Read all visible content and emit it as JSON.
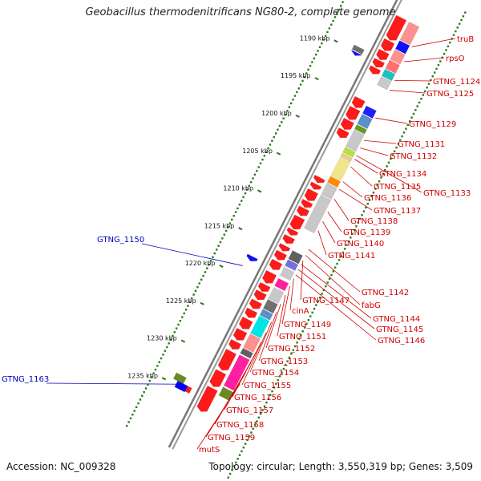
{
  "title": "Geobacillus thermodenitrificans NG80-2, complete genome",
  "footer": {
    "accession": "Accession: NC_009328",
    "summary": "Topology: circular; Length: 3,550,319 bp; Genes: 3,509"
  },
  "colors": {
    "red_label": "#d00000",
    "blue_label": "#0000c0",
    "ticks": "#2a7a1a",
    "backbone": "#666666"
  },
  "ruler": [
    {
      "kbp": 1190,
      "label": "1190 kbp"
    },
    {
      "kbp": 1195,
      "label": "1195 kbp"
    },
    {
      "kbp": 1200,
      "label": "1200 kbp"
    },
    {
      "kbp": 1205,
      "label": "1205 kbp"
    },
    {
      "kbp": 1210,
      "label": "1210 kbp"
    },
    {
      "kbp": 1215,
      "label": "1215 kbp"
    },
    {
      "kbp": 1220,
      "label": "1220 kbp"
    },
    {
      "kbp": 1225,
      "label": "1225 kbp"
    },
    {
      "kbp": 1230,
      "label": "1230 kbp"
    },
    {
      "kbp": 1235,
      "label": "1235 kbp"
    }
  ],
  "right_labels": [
    {
      "text": "truB",
      "anchor_kbp": 1186.5
    },
    {
      "text": "rpsO",
      "anchor_kbp": 1188.5
    },
    {
      "text": "GTNG_1124",
      "anchor_kbp": 1191.0
    },
    {
      "text": "GTNG_1125",
      "anchor_kbp": 1192.3
    },
    {
      "text": "GTNG_1129",
      "anchor_kbp": 1196.0
    },
    {
      "text": "GTNG_1131",
      "anchor_kbp": 1199.0
    },
    {
      "text": "GTNG_1132",
      "anchor_kbp": 1200.0
    },
    {
      "text": "GTNG_1134",
      "anchor_kbp": 1201.5
    },
    {
      "text": "GTNG_1135",
      "anchor_kbp": 1202.5
    },
    {
      "text": "GTNG_1133",
      "anchor_kbp": 1201.0
    },
    {
      "text": "GTNG_1136",
      "anchor_kbp": 1204.5
    },
    {
      "text": "GTNG_1137",
      "anchor_kbp": 1205.5
    },
    {
      "text": "GTNG_1138",
      "anchor_kbp": 1206.8
    },
    {
      "text": "GTNG_1139",
      "anchor_kbp": 1208.5
    },
    {
      "text": "GTNG_1140",
      "anchor_kbp": 1209.8
    },
    {
      "text": "GTNG_1141",
      "anchor_kbp": 1211.0
    },
    {
      "text": "GTNG_1142",
      "anchor_kbp": 1213.5
    },
    {
      "text": "fabG",
      "anchor_kbp": 1214.3
    },
    {
      "text": "GTNG_1147",
      "anchor_kbp": 1215.0
    },
    {
      "text": "GTNG_1144",
      "anchor_kbp": 1215.5
    },
    {
      "text": "GTNG_1145",
      "anchor_kbp": 1216.2
    },
    {
      "text": "GTNG_1146",
      "anchor_kbp": 1216.9
    },
    {
      "text": "cinA",
      "anchor_kbp": 1217.4
    },
    {
      "text": "GTNG_1149",
      "anchor_kbp": 1218.4
    },
    {
      "text": "GTNG_1151",
      "anchor_kbp": 1219.6
    },
    {
      "text": "GTNG_1152",
      "anchor_kbp": 1220.8
    },
    {
      "text": "GTNG_1153",
      "anchor_kbp": 1221.9
    },
    {
      "text": "GTNG_1154",
      "anchor_kbp": 1223.2
    },
    {
      "text": "GTNG_1155",
      "anchor_kbp": 1224.6
    },
    {
      "text": "GTNG_1156",
      "anchor_kbp": 1225.9
    },
    {
      "text": "GTNG_1157",
      "anchor_kbp": 1227.2
    },
    {
      "text": "GTNG_1158",
      "anchor_kbp": 1228.6
    },
    {
      "text": "GTNG_1159",
      "anchor_kbp": 1230.0
    },
    {
      "text": "mutS",
      "anchor_kbp": 1231.5
    }
  ],
  "left_labels": [
    {
      "text": "GTNG_1150",
      "anchor_kbp": 1218.8
    },
    {
      "text": "GTNG_1163",
      "anchor_kbp": 1234.6
    }
  ],
  "features": [
    {
      "name": "forward-gene",
      "start": 1184.0,
      "end": 1187.0,
      "lane": 1,
      "color": "#ff1a1a",
      "arrow": true
    },
    {
      "name": "forward-gene",
      "start": 1187.1,
      "end": 1188.4,
      "lane": 1,
      "color": "#ff1a1a",
      "arrow": true
    },
    {
      "name": "forward-gene",
      "start": 1188.5,
      "end": 1189.6,
      "lane": 1,
      "color": "#ff1a1a",
      "arrow": true
    },
    {
      "name": "forward-gene",
      "start": 1189.7,
      "end": 1190.6,
      "lane": 1,
      "color": "#ff1a1a",
      "arrow": true
    },
    {
      "name": "forward-gene",
      "start": 1190.7,
      "end": 1191.5,
      "lane": 1,
      "color": "#ff1a1a",
      "arrow": true
    },
    {
      "name": "forward-gene",
      "start": 1194.8,
      "end": 1196.0,
      "lane": 1,
      "color": "#ff1a1a",
      "arrow": true
    },
    {
      "name": "forward-gene",
      "start": 1196.1,
      "end": 1197.6,
      "lane": 1,
      "color": "#ff1a1a",
      "arrow": true
    },
    {
      "name": "forward-gene",
      "start": 1197.7,
      "end": 1198.9,
      "lane": 1,
      "color": "#ff1a1a",
      "arrow": true
    },
    {
      "name": "forward-gene",
      "start": 1199.0,
      "end": 1200.0,
      "lane": 1,
      "color": "#ff1a1a",
      "arrow": true
    },
    {
      "name": "forward-gene",
      "start": 1205.3,
      "end": 1206.0,
      "lane": 1,
      "color": "#ff1a1a",
      "arrow": true
    },
    {
      "name": "forward-gene",
      "start": 1206.2,
      "end": 1206.9,
      "lane": 1,
      "color": "#ff1a1a",
      "arrow": true
    },
    {
      "name": "forward-gene",
      "start": 1207.1,
      "end": 1208.4,
      "lane": 1,
      "color": "#ff1a1a",
      "arrow": true
    },
    {
      "name": "forward-gene",
      "start": 1208.5,
      "end": 1209.3,
      "lane": 1,
      "color": "#ff1a1a",
      "arrow": true
    },
    {
      "name": "forward-gene",
      "start": 1209.4,
      "end": 1210.4,
      "lane": 1,
      "color": "#ff1a1a",
      "arrow": true
    },
    {
      "name": "forward-gene",
      "start": 1210.6,
      "end": 1212.2,
      "lane": 1,
      "color": "#ff1a1a",
      "arrow": true
    },
    {
      "name": "forward-gene",
      "start": 1212.3,
      "end": 1213.0,
      "lane": 1,
      "color": "#ff1a1a",
      "arrow": true
    },
    {
      "name": "forward-gene",
      "start": 1213.2,
      "end": 1214.1,
      "lane": 1,
      "color": "#ff1a1a",
      "arrow": true
    },
    {
      "name": "forward-gene",
      "start": 1214.4,
      "end": 1215.1,
      "lane": 1,
      "color": "#ff1a1a",
      "arrow": true
    },
    {
      "name": "forward-gene",
      "start": 1215.3,
      "end": 1216.3,
      "lane": 1,
      "color": "#ff1a1a",
      "arrow": true
    },
    {
      "name": "forward-gene",
      "start": 1216.5,
      "end": 1217.6,
      "lane": 1,
      "color": "#ff1a1a",
      "arrow": true
    },
    {
      "name": "forward-gene",
      "start": 1218.0,
      "end": 1219.4,
      "lane": 1,
      "color": "#ff1a1a",
      "arrow": true
    },
    {
      "name": "forward-gene",
      "start": 1219.6,
      "end": 1220.5,
      "lane": 1,
      "color": "#ff1a1a",
      "arrow": true
    },
    {
      "name": "forward-gene",
      "start": 1220.6,
      "end": 1221.6,
      "lane": 1,
      "color": "#ff1a1a",
      "arrow": true
    },
    {
      "name": "forward-gene",
      "start": 1221.8,
      "end": 1222.8,
      "lane": 1,
      "color": "#ff1a1a",
      "arrow": true
    },
    {
      "name": "forward-gene",
      "start": 1223.0,
      "end": 1224.0,
      "lane": 1,
      "color": "#ff1a1a",
      "arrow": true
    },
    {
      "name": "forward-gene",
      "start": 1224.2,
      "end": 1225.5,
      "lane": 1,
      "color": "#ff1a1a",
      "arrow": true
    },
    {
      "name": "forward-gene",
      "start": 1225.7,
      "end": 1227.0,
      "lane": 1,
      "color": "#ff1a1a",
      "arrow": true
    },
    {
      "name": "forward-gene",
      "start": 1227.2,
      "end": 1228.2,
      "lane": 1,
      "color": "#ff1a1a",
      "arrow": true
    },
    {
      "name": "forward-gene",
      "start": 1228.5,
      "end": 1231.0,
      "lane": 1,
      "color": "#ff1a1a",
      "arrow": true
    },
    {
      "name": "forward-gene",
      "start": 1231.2,
      "end": 1233.2,
      "lane": 1,
      "color": "#ff1a1a",
      "arrow": true
    },
    {
      "name": "forward-gene",
      "start": 1233.4,
      "end": 1236.5,
      "lane": 1,
      "color": "#ff1a1a",
      "arrow": true
    },
    {
      "name": "cog-feature",
      "start": 1184.0,
      "end": 1186.4,
      "lane": 2,
      "color": "#ff9090"
    },
    {
      "name": "cog-feature",
      "start": 1186.5,
      "end": 1187.6,
      "lane": 2,
      "color": "#1010ff"
    },
    {
      "name": "cog-feature",
      "start": 1187.7,
      "end": 1189.0,
      "lane": 2,
      "color": "#ff9090"
    },
    {
      "name": "cog-feature",
      "start": 1189.1,
      "end": 1190.2,
      "lane": 2,
      "color": "#ff7070"
    },
    {
      "name": "cog-feature",
      "start": 1190.3,
      "end": 1191.2,
      "lane": 2,
      "color": "#20c0c0"
    },
    {
      "name": "cog-feature",
      "start": 1191.3,
      "end": 1192.4,
      "lane": 2,
      "color": "#c8c8c8"
    },
    {
      "name": "cog-feature",
      "start": 1195.2,
      "end": 1196.2,
      "lane": 2,
      "color": "#2020ff"
    },
    {
      "name": "cog-feature",
      "start": 1196.3,
      "end": 1197.6,
      "lane": 2,
      "color": "#5a8fc8"
    },
    {
      "name": "cog-feature",
      "start": 1197.7,
      "end": 1198.3,
      "lane": 2,
      "color": "#6a9a20"
    },
    {
      "name": "cog-feature",
      "start": 1198.4,
      "end": 1200.6,
      "lane": 2,
      "color": "#c8c8c8"
    },
    {
      "name": "cog-feature",
      "start": 1200.7,
      "end": 1201.4,
      "lane": 2,
      "color": "#b8e040"
    },
    {
      "name": "cog-feature",
      "start": 1201.5,
      "end": 1202.0,
      "lane": 2,
      "color": "#e8d080"
    },
    {
      "name": "cog-feature",
      "start": 1202.1,
      "end": 1204.5,
      "lane": 2,
      "color": "#f0e68c"
    },
    {
      "name": "cog-feature",
      "start": 1204.6,
      "end": 1205.4,
      "lane": 2,
      "color": "#ff8c00"
    },
    {
      "name": "cog-feature",
      "start": 1205.5,
      "end": 1207.0,
      "lane": 2,
      "color": "#c8c8c8"
    },
    {
      "name": "cog-feature",
      "start": 1207.1,
      "end": 1211.5,
      "lane": 2,
      "color": "#c8c8c8"
    },
    {
      "name": "cog-feature",
      "start": 1214.5,
      "end": 1215.6,
      "lane": 2,
      "color": "#606060"
    },
    {
      "name": "cog-feature",
      "start": 1215.7,
      "end": 1216.5,
      "lane": 2,
      "color": "#7070e0"
    },
    {
      "name": "cog-feature",
      "start": 1216.7,
      "end": 1217.8,
      "lane": 2,
      "color": "#c8c8c8"
    },
    {
      "name": "cog-feature",
      "start": 1218.2,
      "end": 1219.2,
      "lane": 2,
      "color": "#ff20a0"
    },
    {
      "name": "cog-feature",
      "start": 1219.4,
      "end": 1220.9,
      "lane": 2,
      "color": "#c8c8c8"
    },
    {
      "name": "cog-feature",
      "start": 1221.0,
      "end": 1222.2,
      "lane": 2,
      "color": "#707070"
    },
    {
      "name": "cog-feature",
      "start": 1222.3,
      "end": 1223.1,
      "lane": 2,
      "color": "#5a8fc8"
    },
    {
      "name": "cog-feature",
      "start": 1223.2,
      "end": 1225.5,
      "lane": 2,
      "color": "#00e5e5"
    },
    {
      "name": "cog-feature",
      "start": 1225.6,
      "end": 1227.4,
      "lane": 2,
      "color": "#ff9090"
    },
    {
      "name": "cog-feature",
      "start": 1227.5,
      "end": 1228.2,
      "lane": 2,
      "color": "#606060"
    },
    {
      "name": "cog-feature",
      "start": 1228.4,
      "end": 1232.5,
      "lane": 2,
      "color": "#ff20a0"
    },
    {
      "name": "cog-feature",
      "start": 1232.7,
      "end": 1233.8,
      "lane": 2,
      "color": "#6a8a20"
    },
    {
      "name": "reverse-gene",
      "start": 1189.4,
      "end": 1190.0,
      "lane": -1,
      "color": "#707070"
    },
    {
      "name": "reverse-gene",
      "start": 1190.1,
      "end": 1190.5,
      "lane": -1,
      "color": "#1010ff",
      "arrow": true
    },
    {
      "name": "reverse-gene",
      "start": 1217.3,
      "end": 1217.9,
      "lane": -1,
      "color": "#1010ff",
      "arrow": true
    },
    {
      "name": "reverse-gene",
      "start": 1234.5,
      "end": 1235.2,
      "lane": -1,
      "color": "#ff1a1a"
    },
    {
      "name": "reverse-gene",
      "start": 1233.7,
      "end": 1234.5,
      "lane": -2,
      "color": "#6a8a20"
    },
    {
      "name": "reverse-gene",
      "start": 1234.5,
      "end": 1235.3,
      "lane": -1.4,
      "color": "#0000ff"
    }
  ]
}
